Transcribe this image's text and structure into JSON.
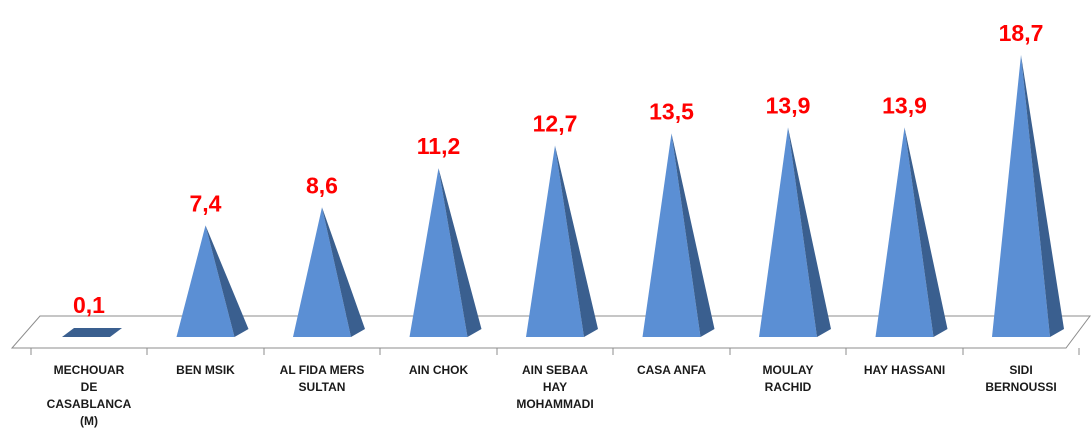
{
  "chart_data": {
    "type": "bar",
    "style": "3d-pyramid",
    "categories": [
      [
        "MECHOUAR",
        "DE",
        "CASABLANCA",
        "(M)"
      ],
      [
        "BEN MSIK"
      ],
      [
        "AL FIDA MERS",
        "SULTAN"
      ],
      [
        "AIN CHOK"
      ],
      [
        "AIN SEBAA",
        "HAY",
        "MOHAMMADI"
      ],
      [
        "CASA ANFA"
      ],
      [
        "MOULAY",
        "RACHID"
      ],
      [
        "HAY HASSANI"
      ],
      [
        "SIDI",
        "BERNOUSSI"
      ]
    ],
    "values": [
      0.1,
      7.4,
      8.6,
      11.2,
      12.7,
      13.5,
      13.9,
      13.9,
      18.7
    ],
    "data_labels": [
      "0,1",
      "7,4",
      "8,6",
      "11,2",
      "12,7",
      "13,5",
      "13,9",
      "13,9",
      "18,7"
    ],
    "title": "",
    "xlabel": "",
    "ylabel": "",
    "ylim": [
      0,
      18.7
    ],
    "grid": false,
    "legend": "none",
    "colors": {
      "pyramid_front": "#5B8FD4",
      "pyramid_side": "#3A5F8F",
      "floor_fill": "#ffffff",
      "floor_stroke": "#8c8c8c",
      "data_label": "#FF0000",
      "category_label": "#1a1a1a"
    }
  }
}
